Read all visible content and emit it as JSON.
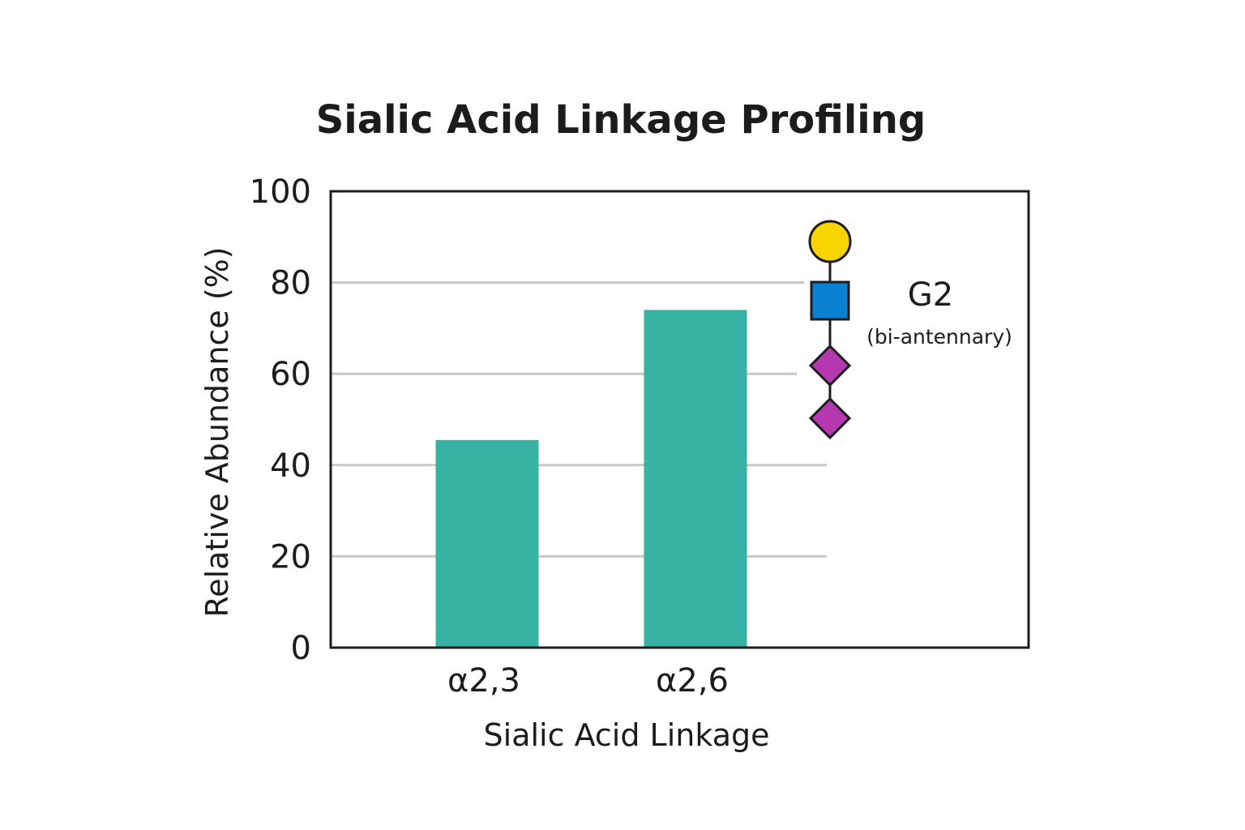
{
  "chart_data": {
    "type": "bar",
    "title": "Sialic Acid Linkage Profiling",
    "xlabel": "Sialic Acid Linkage",
    "ylabel": "Relative Abundance (%)",
    "categories": [
      "α2,3",
      "α2,6"
    ],
    "values": [
      45.5,
      74
    ],
    "ylim": [
      0,
      100
    ],
    "yticks": [
      "0",
      "20",
      "40",
      "60",
      "80",
      "100"
    ],
    "grid": true,
    "bar_color": "#38b2a5",
    "glycan_legend": {
      "label": "G2",
      "sublabel": "(bi-antennary)",
      "placement": "top-right",
      "symbols": [
        {
          "shape": "circle",
          "name": "galactose-circle-icon",
          "color": "#f7d300"
        },
        {
          "shape": "square",
          "name": "glcnac-square-icon",
          "color": "#0b7fd1"
        },
        {
          "shape": "diamond",
          "name": "sialic-acid-diamond-icon",
          "color": "#b538b0"
        },
        {
          "shape": "diamond",
          "name": "sialic-acid-diamond-icon",
          "color": "#b538b0"
        }
      ]
    }
  }
}
